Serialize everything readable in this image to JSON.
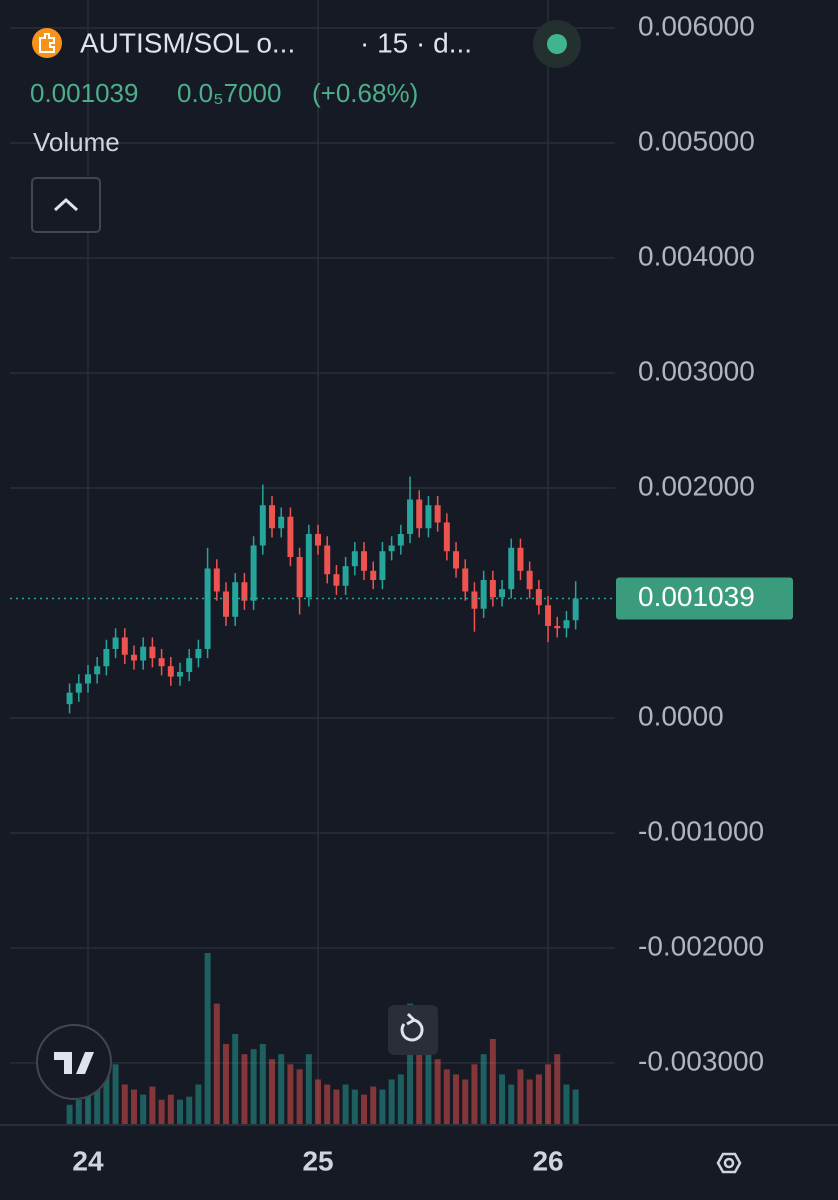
{
  "chart_data": {
    "type": "candlestick",
    "title": "AUTISM/SOL o...",
    "subtitle": "· 15 · d...",
    "change": "0.0₅7000",
    "change_percent": "(+0.68%)",
    "volume_label": "Volume",
    "up_color": "#26a69a",
    "down_color": "#ef5350",
    "grid": true,
    "xlim": [
      23.661,
      26.291
    ],
    "xticks": [
      24,
      25,
      26
    ],
    "ylim": [
      -0.00354,
      0.006244
    ],
    "yticks": [
      {
        "value": 0.006,
        "label": "0.006000"
      },
      {
        "value": 0.005,
        "label": "0.005000"
      },
      {
        "value": 0.004,
        "label": "0.004000"
      },
      {
        "value": 0.003,
        "label": "0.003000"
      },
      {
        "value": 0.002,
        "label": "0.002000"
      },
      {
        "value": 0,
        "label": "0.0000"
      },
      {
        "value": -0.001,
        "label": "-0.001000"
      },
      {
        "value": -0.002,
        "label": "-0.002000"
      },
      {
        "value": -0.003,
        "label": "-0.003000"
      }
    ],
    "x": [
      23.92,
      23.96,
      24,
      24.04,
      24.08,
      24.12,
      24.16,
      24.2,
      24.24,
      24.28,
      24.32,
      24.36,
      24.4,
      24.44,
      24.48,
      24.52,
      24.56,
      24.6,
      24.64,
      24.68,
      24.72,
      24.76,
      24.8,
      24.84,
      24.88,
      24.92,
      24.96,
      25,
      25.04,
      25.08,
      25.12,
      25.16,
      25.2,
      25.24,
      25.28,
      25.32,
      25.36,
      25.4,
      25.44,
      25.48,
      25.52,
      25.56,
      25.6,
      25.64,
      25.68,
      25.72,
      25.76,
      25.8,
      25.84,
      25.88,
      25.92,
      25.96,
      26,
      26.04,
      26.08,
      26.12
    ],
    "open": [
      0.00012,
      0.00022,
      0.0003,
      0.00038,
      0.00045,
      0.0006,
      0.0007,
      0.00055,
      0.0005,
      0.00062,
      0.00052,
      0.00045,
      0.00036,
      0.0004,
      0.00052,
      0.0006,
      0.0013,
      0.0011,
      0.00088,
      0.00118,
      0.00102,
      0.0015,
      0.00185,
      0.00165,
      0.00175,
      0.0014,
      0.00105,
      0.0016,
      0.0015,
      0.00125,
      0.00115,
      0.00132,
      0.00145,
      0.00128,
      0.0012,
      0.00145,
      0.0015,
      0.0016,
      0.0019,
      0.00165,
      0.00185,
      0.0017,
      0.00145,
      0.0013,
      0.0011,
      0.00095,
      0.0012,
      0.00105,
      0.00112,
      0.00148,
      0.00128,
      0.00112,
      0.00098,
      0.0008,
      0.00078,
      0.00085
    ],
    "high": [
      0.0003,
      0.00038,
      0.00046,
      0.00053,
      0.00068,
      0.00078,
      0.00078,
      0.00063,
      0.0007,
      0.0007,
      0.0006,
      0.00053,
      0.00048,
      0.0006,
      0.00068,
      0.00148,
      0.00138,
      0.00118,
      0.00126,
      0.00126,
      0.00158,
      0.00203,
      0.00193,
      0.00183,
      0.00183,
      0.00148,
      0.00168,
      0.00168,
      0.00158,
      0.00133,
      0.0014,
      0.00153,
      0.00153,
      0.00136,
      0.00153,
      0.00158,
      0.00168,
      0.0021,
      0.00198,
      0.00193,
      0.00193,
      0.00178,
      0.00153,
      0.00138,
      0.00118,
      0.00128,
      0.00128,
      0.0012,
      0.00156,
      0.00156,
      0.00136,
      0.0012,
      0.00106,
      0.00088,
      0.00093,
      0.001189
    ],
    "low": [
      4e-05,
      0.00014,
      0.00022,
      0.0003,
      0.00037,
      0.00052,
      0.00047,
      0.00042,
      0.00042,
      0.00044,
      0.00037,
      0.00028,
      0.00028,
      0.00032,
      0.00044,
      0.00052,
      0.00102,
      0.0008,
      0.0008,
      0.00094,
      0.00094,
      0.00142,
      0.00157,
      0.00157,
      0.00132,
      0.0009,
      0.00097,
      0.00142,
      0.00117,
      0.00107,
      0.00107,
      0.00124,
      0.0012,
      0.00112,
      0.00112,
      0.00137,
      0.00142,
      0.00152,
      0.00157,
      0.00157,
      0.00162,
      0.00137,
      0.00122,
      0.00102,
      0.00075,
      0.00087,
      0.00097,
      0.00097,
      0.00104,
      0.0012,
      0.00104,
      0.0009,
      0.00066,
      0.0007,
      0.0007,
      0.00077
    ],
    "close": [
      0.00022,
      0.0003,
      0.00038,
      0.00045,
      0.0006,
      0.0007,
      0.00055,
      0.0005,
      0.00062,
      0.00052,
      0.00045,
      0.00036,
      0.0004,
      0.00052,
      0.0006,
      0.0013,
      0.0011,
      0.00088,
      0.00118,
      0.00102,
      0.0015,
      0.00185,
      0.00165,
      0.00175,
      0.0014,
      0.00105,
      0.0016,
      0.0015,
      0.00125,
      0.00115,
      0.00132,
      0.00145,
      0.00128,
      0.0012,
      0.00145,
      0.0015,
      0.0016,
      0.0019,
      0.00165,
      0.00185,
      0.0017,
      0.00145,
      0.0013,
      0.0011,
      0.00095,
      0.0012,
      0.00105,
      0.00112,
      0.00148,
      0.00128,
      0.00112,
      0.00098,
      0.0008,
      0.00078,
      0.00085,
      0.001039
    ],
    "volume": [
      20,
      25,
      30,
      45,
      50,
      60,
      40,
      35,
      30,
      38,
      25,
      30,
      25,
      28,
      40,
      170,
      120,
      80,
      90,
      70,
      75,
      80,
      65,
      70,
      60,
      55,
      70,
      45,
      40,
      35,
      40,
      35,
      30,
      38,
      35,
      45,
      50,
      120,
      80,
      70,
      65,
      55,
      50,
      45,
      60,
      70,
      85,
      50,
      40,
      55,
      45,
      50,
      60,
      70,
      40,
      35
    ]
  }
}
